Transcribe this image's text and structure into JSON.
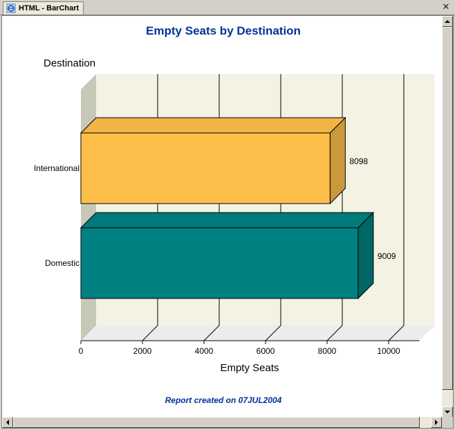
{
  "tab": {
    "label": "HTML - BarChart",
    "icon": "ie-document-icon",
    "close_icon": "close-icon"
  },
  "report": {
    "title": "Empty Seats by Destination",
    "footer": "Report created on 07JUL2004"
  },
  "colors": {
    "title": "#003399",
    "international": "#fdbf4a",
    "domestic": "#008080",
    "plot_wall": "#f3f2e3",
    "floor": "#ececec",
    "side_wall": "#c8c8b8"
  },
  "chart_data": {
    "type": "bar",
    "orientation": "horizontal",
    "title": "Empty Seats by Destination",
    "category_axis_label": "Destination",
    "value_axis_label": "Empty Seats",
    "categories": [
      "International",
      "Domestic"
    ],
    "values": [
      8098,
      9009
    ],
    "data_labels": [
      "8098",
      "9009"
    ],
    "xlim": [
      0,
      11000
    ],
    "ticks": [
      0,
      2000,
      4000,
      6000,
      8000,
      10000
    ],
    "tick_labels": [
      "0",
      "2000",
      "4000",
      "6000",
      "8000",
      "10000"
    ],
    "grid": true,
    "three_d": true
  }
}
